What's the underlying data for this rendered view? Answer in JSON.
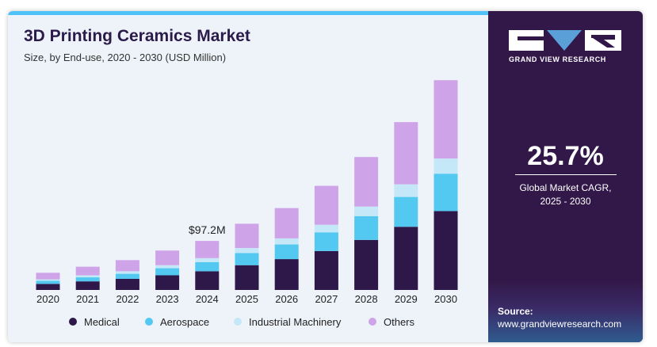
{
  "header": {
    "title": "3D Printing Ceramics Market",
    "subtitle": "Size, by End-use, 2020 - 2030 (USD Million)"
  },
  "sidebar": {
    "brand": "GRAND VIEW RESEARCH",
    "cagr_value": "25.7%",
    "cagr_label_line1": "Global Market CAGR,",
    "cagr_label_line2": "2025 - 2030",
    "source_title": "Source:",
    "source_url": "www.grandviewresearch.com"
  },
  "colors": {
    "Medical": "#2d1849",
    "Aerospace": "#53c8f0",
    "Industrial Machinery": "#c4e8f7",
    "Others": "#cfa3e8",
    "panel": "#321849",
    "accent": "#4fc3f7"
  },
  "chart_data": {
    "type": "bar",
    "stacked": true,
    "title": "3D Printing Ceramics Market",
    "subtitle": "Size, by End-use, 2020 - 2030 (USD Million)",
    "categories": [
      "2020",
      "2021",
      "2022",
      "2023",
      "2024",
      "2025",
      "2026",
      "2027",
      "2028",
      "2029",
      "2030"
    ],
    "series": [
      {
        "name": "Medical",
        "values": [
          12,
          17,
          22,
          29,
          37,
          49,
          61,
          77,
          99,
          125,
          156
        ]
      },
      {
        "name": "Aerospace",
        "values": [
          6,
          8,
          10,
          14,
          18,
          24,
          29,
          37,
          47,
          59,
          74
        ]
      },
      {
        "name": "Industrial Machinery",
        "values": [
          3,
          4,
          5,
          6,
          8,
          10,
          12,
          15,
          19,
          25,
          30
        ]
      },
      {
        "name": "Others",
        "values": [
          13,
          17,
          22,
          29,
          34,
          48,
          60,
          77,
          98,
          123,
          155
        ]
      }
    ],
    "annotations": [
      {
        "category": "2024",
        "text": "$97.2M"
      }
    ],
    "ylim": [
      0,
      420
    ],
    "legend": "bottom",
    "grid": false
  }
}
